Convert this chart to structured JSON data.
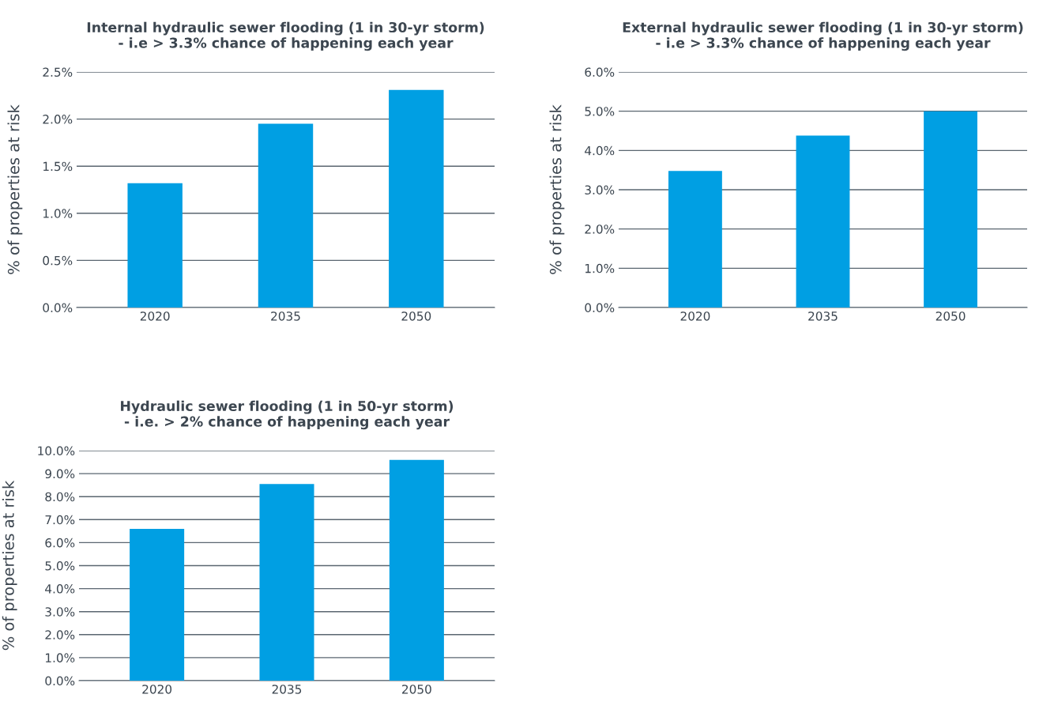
{
  "chart_data": [
    {
      "type": "bar",
      "title": "Internal hydraulic sewer flooding (1 in 30-yr storm)\n- i.e > 3.3% chance of happening each year",
      "ylabel": "% of properties at risk",
      "categories": [
        "2020",
        "2035",
        "2050"
      ],
      "values": [
        1.32,
        1.95,
        2.31
      ],
      "color": "#009fe3",
      "ylim": [
        0,
        2.5
      ],
      "yticks": [
        {
          "value": 0,
          "label": "0.0%"
        },
        {
          "value": 0.5,
          "label": "0.5%"
        },
        {
          "value": 1.0,
          "label": "1.0%"
        },
        {
          "value": 1.5,
          "label": "1.5%"
        },
        {
          "value": 2.0,
          "label": "2.0%"
        },
        {
          "value": 2.5,
          "label": "2.5%"
        }
      ],
      "grid": "y"
    },
    {
      "type": "bar",
      "title": "External hydraulic sewer flooding (1 in 30-yr storm)\n- i.e > 3.3% chance of happening each year",
      "ylabel": "% of properties at risk",
      "categories": [
        "2020",
        "2035",
        "2050"
      ],
      "values": [
        3.48,
        4.38,
        5.0
      ],
      "color": "#009fe3",
      "ylim": [
        0,
        6
      ],
      "yticks": [
        {
          "value": 0,
          "label": "0.0%"
        },
        {
          "value": 1,
          "label": "1.0%"
        },
        {
          "value": 2,
          "label": "2.0%"
        },
        {
          "value": 3,
          "label": "3.0%"
        },
        {
          "value": 4,
          "label": "4.0%"
        },
        {
          "value": 5,
          "label": "5.0%"
        },
        {
          "value": 6,
          "label": "6.0%"
        }
      ],
      "grid": "y"
    },
    {
      "type": "bar",
      "title": "Hydraulic sewer flooding (1 in 50-yr storm)\n- i.e. > 2% chance of happening each year",
      "ylabel": "% of properties at risk",
      "categories": [
        "2020",
        "2035",
        "2050"
      ],
      "values": [
        6.6,
        8.55,
        9.6
      ],
      "color": "#009fe3",
      "ylim": [
        0,
        10
      ],
      "yticks": [
        {
          "value": 0,
          "label": "0.0%"
        },
        {
          "value": 1,
          "label": "1.0%"
        },
        {
          "value": 2,
          "label": "2.0%"
        },
        {
          "value": 3,
          "label": "3.0%"
        },
        {
          "value": 4,
          "label": "4.0%"
        },
        {
          "value": 5,
          "label": "5.0%"
        },
        {
          "value": 6,
          "label": "6.0%"
        },
        {
          "value": 7,
          "label": "7.0%"
        },
        {
          "value": 8,
          "label": "8.0%"
        },
        {
          "value": 9,
          "label": "9.0%"
        },
        {
          "value": 10,
          "label": "10.0%"
        }
      ],
      "grid": "y"
    }
  ]
}
